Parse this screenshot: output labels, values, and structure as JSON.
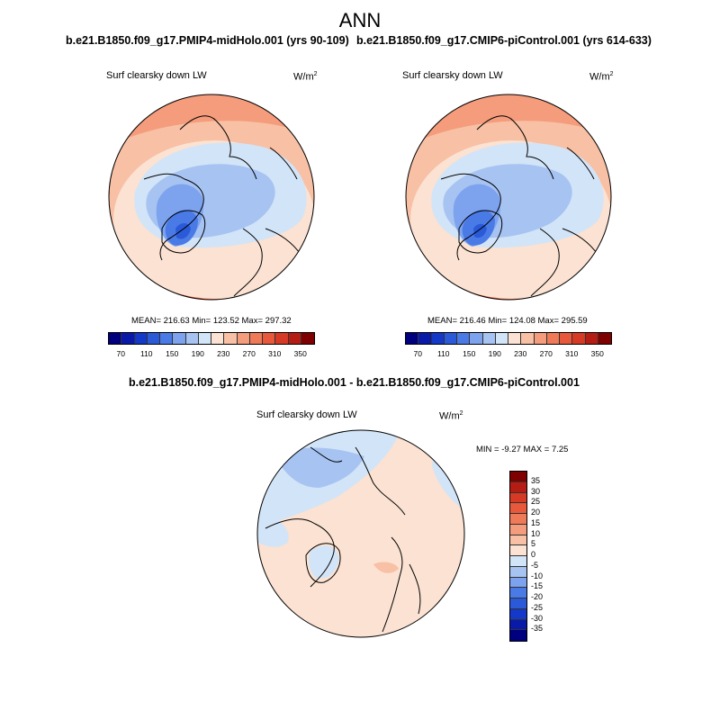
{
  "figure": {
    "season": "ANN",
    "panel1": {
      "case": "b.e21.B1850.f09_g17.PMIP4-midHolo.001 (yrs 90-109)",
      "variable": "Surf clearsky down LW",
      "units_base": "W/m",
      "units_exp": "2",
      "stats": "MEAN= 216.63  Min= 123.52  Max= 297.32"
    },
    "panel2": {
      "case": "b.e21.B1850.f09_g17.CMIP6-piControl.001 (yrs 614-633)",
      "variable": "Surf clearsky down LW",
      "units_base": "W/m",
      "units_exp": "2",
      "stats": "MEAN= 216.46  Min= 124.08  Max= 295.59"
    },
    "diff": {
      "title": "b.e21.B1850.f09_g17.PMIP4-midHolo.001 - b.e21.B1850.f09_g17.CMIP6-piControl.001",
      "variable": "Surf clearsky down LW",
      "units_base": "W/m",
      "units_exp": "2",
      "stats": "MIN =  -9.27 MAX =   7.25"
    },
    "abs_colorbar": {
      "colors": [
        "#00007f",
        "#0a1aa8",
        "#1438c8",
        "#2a5ad8",
        "#4a7ae6",
        "#7da3ee",
        "#a7c3f2",
        "#d2e4f7",
        "#fbe2d2",
        "#f8c0a4",
        "#f49c7c",
        "#ef7a58",
        "#e8583a",
        "#d73a24",
        "#b51d14",
        "#7f0000"
      ],
      "tick_labels": [
        "70",
        "110",
        "150",
        "190",
        "230",
        "270",
        "310",
        "350"
      ]
    },
    "diff_colorbar": {
      "colors": [
        "#7f0000",
        "#b51d14",
        "#d73a24",
        "#e8583a",
        "#ef7a58",
        "#f49c7c",
        "#f8c0a4",
        "#fbe2d2",
        "#d2e4f7",
        "#a7c3f2",
        "#7da3ee",
        "#4a7ae6",
        "#2a5ad8",
        "#1438c8",
        "#0a1aa8",
        "#00007f"
      ],
      "labels": [
        "35",
        "30",
        "25",
        "20",
        "15",
        "10",
        "5",
        "0",
        "-5",
        "-10",
        "-15",
        "-20",
        "-25",
        "-30",
        "-35"
      ]
    }
  }
}
